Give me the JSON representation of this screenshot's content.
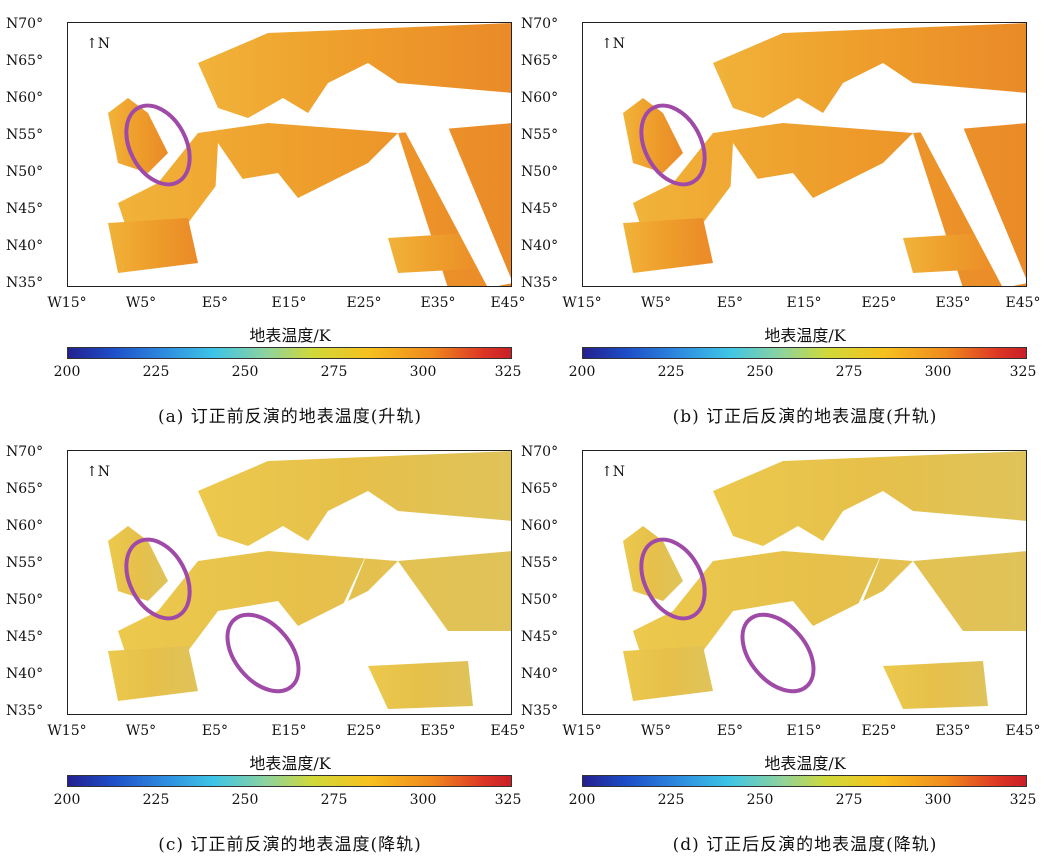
{
  "panels": [
    {
      "id": "a",
      "caption": "(a) 订正前反演的地表温度(升轨)",
      "regime": "asc"
    },
    {
      "id": "b",
      "caption": "(b) 订正后反演的地表温度(升轨)",
      "regime": "asc"
    },
    {
      "id": "c",
      "caption": "(c) 订正前反演的地表温度(降轨)",
      "regime": "desc"
    },
    {
      "id": "d",
      "caption": "(d) 订正后反演的地表温度(降轨)",
      "regime": "desc"
    }
  ],
  "lat_labels": [
    "N70°",
    "N65°",
    "N60°",
    "N55°",
    "N50°",
    "N45°",
    "N40°",
    "N35°"
  ],
  "lon_labels": [
    "W15°",
    "W5°",
    "E5°",
    "E15°",
    "E25°",
    "E35°",
    "E45°"
  ],
  "north_label": "N",
  "colorbar": {
    "title": "地表温度/K",
    "ticks": [
      "200",
      "225",
      "250",
      "275",
      "300",
      "325"
    ],
    "range": [
      200,
      325
    ]
  },
  "colors": {
    "asc_land": "#f2a32c",
    "desc_land": "#e8c64a",
    "ellipse": "#a04aa8",
    "coast": "#222222"
  }
}
